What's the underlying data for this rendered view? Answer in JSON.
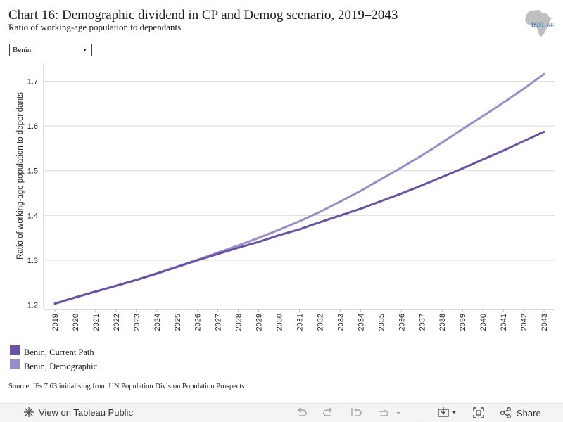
{
  "header": {
    "title": "Chart 16: Demographic dividend in CP and Demog scenario, 2019–2043",
    "subtitle": "Ratio of working-age population to dependants",
    "logo_text": "ISS AFRICA"
  },
  "filter": {
    "selected": "Benin"
  },
  "chart_data": {
    "type": "line",
    "x": [
      "2019",
      "2020",
      "2021",
      "2022",
      "2023",
      "2024",
      "2025",
      "2026",
      "2027",
      "2028",
      "2029",
      "2030",
      "2031",
      "2032",
      "2033",
      "2034",
      "2035",
      "2036",
      "2037",
      "2038",
      "2039",
      "2040",
      "2041",
      "2042",
      "2043"
    ],
    "ylabel": "Ratio of working-age population to dependants",
    "yticks": [
      "1.2",
      "1.3",
      "1.4",
      "1.5",
      "1.6",
      "1.7"
    ],
    "ylim": [
      1.19,
      1.74
    ],
    "grid": true,
    "series": [
      {
        "name": "Benin, Current Path",
        "color": "#6a52a2",
        "values": [
          1.203,
          1.217,
          1.23,
          1.243,
          1.256,
          1.27,
          1.285,
          1.3,
          1.314,
          1.328,
          1.341,
          1.356,
          1.369,
          1.385,
          1.4,
          1.415,
          1.432,
          1.449,
          1.467,
          1.486,
          1.505,
          1.525,
          1.545,
          1.566,
          1.587
        ]
      },
      {
        "name": "Benin, Demographic",
        "color": "#9b8bc7",
        "values": [
          1.203,
          1.217,
          1.23,
          1.243,
          1.256,
          1.271,
          1.286,
          1.301,
          1.317,
          1.333,
          1.35,
          1.368,
          1.387,
          1.408,
          1.431,
          1.455,
          1.481,
          1.507,
          1.534,
          1.563,
          1.593,
          1.622,
          1.652,
          1.683,
          1.716
        ]
      }
    ],
    "legend_position": "bottom-left"
  },
  "source": "Source: IFs 7.63 initialising from UN Population Division Population Prospects",
  "toolbar": {
    "view_label": "View on Tableau Public",
    "share_label": "Share"
  }
}
